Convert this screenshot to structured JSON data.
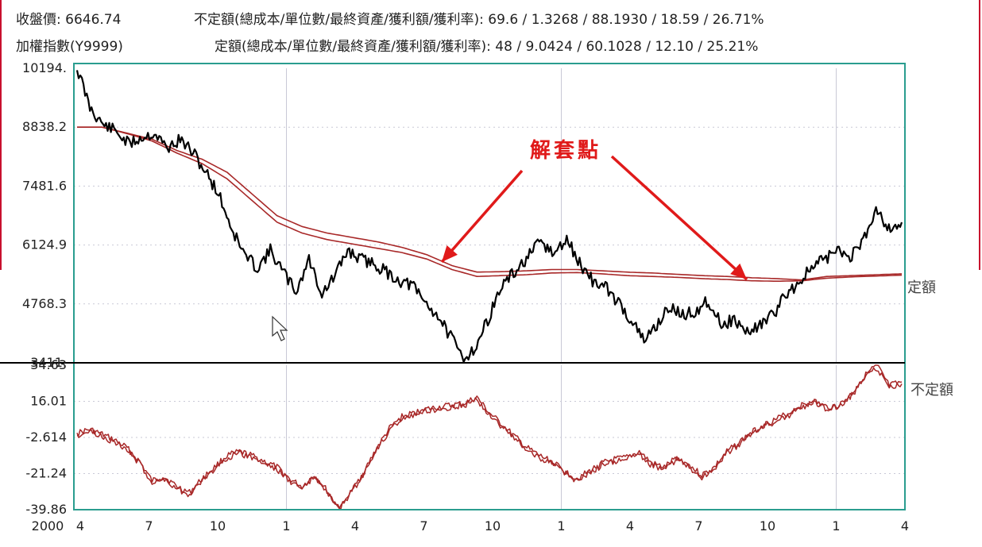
{
  "header": {
    "close_label": "收盤價:",
    "close_value": "6646.74",
    "index_name": "加權指數(Y9999)",
    "irregular_stats": "不定額(總成本/單位數/最終資產/獲利額/獲利率): 69.6 / 1.3268 / 88.1930 / 18.59 / 26.71%",
    "regular_stats": "定額(總成本/單位數/最終資產/獲利額/獲利率): 48 / 9.0424 / 60.1028 / 12.10 / 25.21%"
  },
  "colors": {
    "frame": "#2a9d8f",
    "price_line": "#000000",
    "cost_line": "#a82828",
    "annotation": "#e01a1a",
    "grid": "#c9c9d6",
    "side_rule": "#c8102e"
  },
  "annotation": {
    "label": "解套點"
  },
  "chart_data": [
    {
      "type": "line",
      "x_tick_labels": [
        "4",
        "7",
        "10",
        "1",
        "4",
        "7",
        "10",
        "1",
        "4",
        "7",
        "10",
        "1",
        "4"
      ],
      "x_year_label": "2000",
      "y_tick_labels": [
        "10194.",
        "8838.2",
        "7481.6",
        "6124.9",
        "4768.3",
        "3411."
      ],
      "ylim": [
        3411,
        10194
      ],
      "grid": true,
      "legend": [
        {
          "label": "定額",
          "placement": "right"
        },
        {
          "label": "不定額",
          "placement": "right"
        }
      ],
      "series": [
        {
          "values": [
            10194,
            9300,
            8900,
            8750,
            8450,
            8600,
            8700,
            8350,
            8550,
            8250,
            7800,
            7300,
            6500,
            5900,
            5600,
            6000,
            5500,
            5050,
            5800,
            5000,
            5400,
            6000,
            5800,
            5700,
            5500,
            5300,
            5200,
            4800,
            4500,
            4000,
            3500,
            3800,
            4500,
            5200,
            5500,
            5850,
            6200,
            5900,
            6250,
            5700,
            5300,
            5150,
            4800,
            4400,
            3900,
            4300,
            4700,
            4500,
            4600,
            4850,
            4300,
            4400,
            4100,
            4300,
            4500,
            5000,
            5250,
            5600,
            5800,
            6000,
            5850,
            6200,
            7000,
            6500,
            6646.74
          ]
        },
        {
          "values": [
            8838,
            8838,
            8700,
            8560,
            8300,
            8100,
            7800,
            7300,
            6800,
            6550,
            6400,
            6300,
            6200,
            6070,
            5900,
            5650,
            5500,
            5510,
            5530,
            5560,
            5560,
            5530,
            5500,
            5480,
            5450,
            5420,
            5400,
            5370,
            5350,
            5320,
            5400,
            5420,
            5440,
            5460
          ]
        },
        {
          "values": [
            8838,
            8838,
            8690,
            8520,
            8240,
            8000,
            7650,
            7150,
            6650,
            6400,
            6250,
            6150,
            6050,
            5950,
            5800,
            5560,
            5400,
            5420,
            5440,
            5480,
            5490,
            5460,
            5420,
            5400,
            5380,
            5350,
            5330,
            5300,
            5290,
            5300,
            5360,
            5390,
            5410,
            5430
          ]
        }
      ]
    },
    {
      "type": "line",
      "y_tick_labels": [
        "34.63",
        "16.01",
        "-2.614",
        "-21.24",
        "-39.86"
      ],
      "ylim": [
        -39.86,
        34.63
      ],
      "grid": true,
      "legend": [
        {
          "label": "定額",
          "placement": "right"
        },
        {
          "label": "不定額",
          "placement": "right"
        }
      ],
      "series": [
        {
          "values": [
            -0.5,
            1.5,
            -1,
            -4,
            -8,
            -15,
            -25,
            -23,
            -28,
            -31,
            -24,
            -18,
            -12,
            -10,
            -12,
            -15,
            -18,
            -24,
            -28,
            -22,
            -30,
            -39.86,
            -30,
            -20,
            -8,
            2,
            8,
            10,
            12,
            13,
            14,
            15,
            18,
            10,
            4,
            -2,
            -8,
            -12,
            -15,
            -20,
            -24,
            -20,
            -16,
            -14,
            -13,
            -10,
            -16,
            -18,
            -13,
            -17,
            -22,
            -18,
            -10,
            -5,
            0,
            4,
            7,
            10,
            14,
            16,
            13,
            14,
            20,
            29,
            34.63,
            24,
            26
          ]
        },
        {
          "values": [
            -1.5,
            0.5,
            -2,
            -5,
            -9,
            -16,
            -26,
            -24,
            -29,
            -32,
            -25,
            -19,
            -13,
            -11,
            -13,
            -16,
            -19,
            -25,
            -29,
            -23,
            -31,
            -39.86,
            -31,
            -21,
            -9,
            1,
            7,
            9,
            11,
            12,
            13,
            14,
            17,
            9,
            3,
            -3,
            -9,
            -13,
            -16,
            -21,
            -25,
            -21,
            -17,
            -15,
            -14,
            -11,
            -17,
            -19,
            -14,
            -18,
            -23,
            -19,
            -11,
            -6,
            -1,
            3,
            6,
            9,
            13,
            15,
            12,
            13,
            19,
            28,
            33,
            23,
            25
          ]
        }
      ]
    }
  ]
}
